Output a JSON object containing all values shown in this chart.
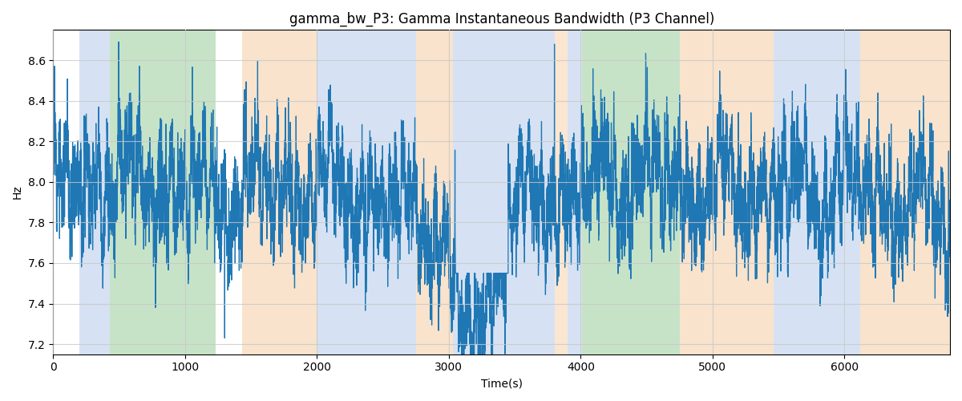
{
  "title": "gamma_bw_P3: Gamma Instantaneous Bandwidth (P3 Channel)",
  "xlabel": "Time(s)",
  "ylabel": "Hz",
  "ylim": [
    7.15,
    8.75
  ],
  "xlim": [
    0,
    6800
  ],
  "bg_bands": [
    {
      "xmin": 200,
      "xmax": 430,
      "color": "#aec6e8",
      "alpha": 0.5
    },
    {
      "xmin": 430,
      "xmax": 1230,
      "color": "#90c990",
      "alpha": 0.5
    },
    {
      "xmin": 1430,
      "xmax": 2000,
      "color": "#f5c89a",
      "alpha": 0.5
    },
    {
      "xmin": 2000,
      "xmax": 2750,
      "color": "#aec6e8",
      "alpha": 0.5
    },
    {
      "xmin": 2750,
      "xmax": 3030,
      "color": "#f5c89a",
      "alpha": 0.5
    },
    {
      "xmin": 3030,
      "xmax": 3800,
      "color": "#aec6e8",
      "alpha": 0.5
    },
    {
      "xmin": 3800,
      "xmax": 3900,
      "color": "#f5c89a",
      "alpha": 0.45
    },
    {
      "xmin": 3900,
      "xmax": 4010,
      "color": "#aec6e8",
      "alpha": 0.5
    },
    {
      "xmin": 4010,
      "xmax": 4750,
      "color": "#90c990",
      "alpha": 0.5
    },
    {
      "xmin": 4750,
      "xmax": 5460,
      "color": "#f5c89a",
      "alpha": 0.5
    },
    {
      "xmin": 5460,
      "xmax": 6120,
      "color": "#aec6e8",
      "alpha": 0.5
    },
    {
      "xmin": 6120,
      "xmax": 6800,
      "color": "#f5c89a",
      "alpha": 0.5
    }
  ],
  "line_color": "#1f77b4",
  "line_width": 0.9,
  "seed": 12,
  "n_points": 6800,
  "grid_color": "#c8c8c8",
  "grid_alpha": 0.8,
  "xticks": [
    0,
    1000,
    2000,
    3000,
    4000,
    5000,
    6000
  ],
  "yticks": [
    7.2,
    7.4,
    7.6,
    7.8,
    8.0,
    8.2,
    8.4,
    8.6
  ]
}
